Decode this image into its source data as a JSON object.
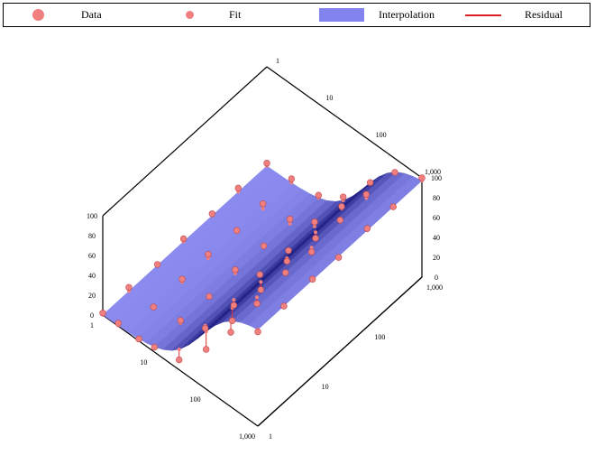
{
  "legend": {
    "data_label": "Data",
    "fit_label": "Fit",
    "interp_label": "Interpolation",
    "residual_label": "Residual"
  },
  "colors": {
    "surface": "#8080f0",
    "marker": "#f08080",
    "residual": "#e03030"
  },
  "chart_data": {
    "type": "surface",
    "title": "",
    "series": [
      {
        "name": "Data"
      },
      {
        "name": "Fit"
      },
      {
        "name": "Interpolation"
      },
      {
        "name": "Residual"
      }
    ],
    "axes": {
      "left_x": {
        "scale": "log",
        "ticks": [
          "1,000",
          "100",
          "10",
          "1"
        ],
        "range": [
          1,
          1000
        ]
      },
      "right_y": {
        "scale": "log",
        "ticks": [
          "1",
          "10",
          "100",
          "1,000"
        ],
        "range": [
          1,
          1000
        ]
      },
      "z": {
        "range": [
          0,
          100
        ],
        "ticks": [
          "0",
          "20",
          "40",
          "60",
          "80",
          "100"
        ]
      }
    },
    "surface_model": "sigmoid in log10(x)",
    "points": [
      {
        "x": 1,
        "y": 1,
        "z": 2
      },
      {
        "x": 2,
        "y": 1,
        "z": 3
      },
      {
        "x": 5,
        "y": 1,
        "z": 2
      },
      {
        "x": 10,
        "y": 1,
        "z": 5
      },
      {
        "x": 30,
        "y": 1,
        "z": 10
      },
      {
        "x": 100,
        "y": 1,
        "z": 40
      },
      {
        "x": 300,
        "y": 1,
        "z": 75
      },
      {
        "x": 1000,
        "y": 1,
        "z": 95
      },
      {
        "x": 1,
        "y": 3,
        "z": 4
      },
      {
        "x": 3,
        "y": 3,
        "z": 2
      },
      {
        "x": 10,
        "y": 3,
        "z": 8
      },
      {
        "x": 30,
        "y": 3,
        "z": 18
      },
      {
        "x": 100,
        "y": 3,
        "z": 45
      },
      {
        "x": 300,
        "y": 3,
        "z": 80
      },
      {
        "x": 1000,
        "y": 3,
        "z": 97
      },
      {
        "x": 1,
        "y": 10,
        "z": 1
      },
      {
        "x": 3,
        "y": 10,
        "z": 4
      },
      {
        "x": 10,
        "y": 10,
        "z": 6
      },
      {
        "x": 30,
        "y": 10,
        "z": 15
      },
      {
        "x": 100,
        "y": 10,
        "z": 50
      },
      {
        "x": 300,
        "y": 10,
        "z": 85
      },
      {
        "x": 1000,
        "y": 10,
        "z": 98
      },
      {
        "x": 1,
        "y": 30,
        "z": 3
      },
      {
        "x": 3,
        "y": 30,
        "z": 5
      },
      {
        "x": 10,
        "y": 30,
        "z": 9
      },
      {
        "x": 30,
        "y": 30,
        "z": 22
      },
      {
        "x": 100,
        "y": 30,
        "z": 55
      },
      {
        "x": 300,
        "y": 30,
        "z": 82
      },
      {
        "x": 1000,
        "y": 30,
        "z": 96
      },
      {
        "x": 1,
        "y": 100,
        "z": 2
      },
      {
        "x": 3,
        "y": 100,
        "z": 3
      },
      {
        "x": 10,
        "y": 100,
        "z": 7
      },
      {
        "x": 30,
        "y": 100,
        "z": 20
      },
      {
        "x": 100,
        "y": 100,
        "z": 52
      },
      {
        "x": 300,
        "y": 100,
        "z": 88
      },
      {
        "x": 1000,
        "y": 100,
        "z": 99
      },
      {
        "x": 1,
        "y": 300,
        "z": 4
      },
      {
        "x": 3,
        "y": 300,
        "z": 6
      },
      {
        "x": 10,
        "y": 300,
        "z": 10
      },
      {
        "x": 30,
        "y": 300,
        "z": 25
      },
      {
        "x": 100,
        "y": 300,
        "z": 60
      },
      {
        "x": 300,
        "y": 300,
        "z": 90
      },
      {
        "x": 1000,
        "y": 300,
        "z": 97
      },
      {
        "x": 1,
        "y": 1000,
        "z": 3
      },
      {
        "x": 3,
        "y": 1000,
        "z": 5
      },
      {
        "x": 10,
        "y": 1000,
        "z": 8
      },
      {
        "x": 30,
        "y": 1000,
        "z": 24
      },
      {
        "x": 100,
        "y": 1000,
        "z": 58
      },
      {
        "x": 300,
        "y": 1000,
        "z": 86
      },
      {
        "x": 1000,
        "y": 1000,
        "z": 100
      }
    ]
  }
}
